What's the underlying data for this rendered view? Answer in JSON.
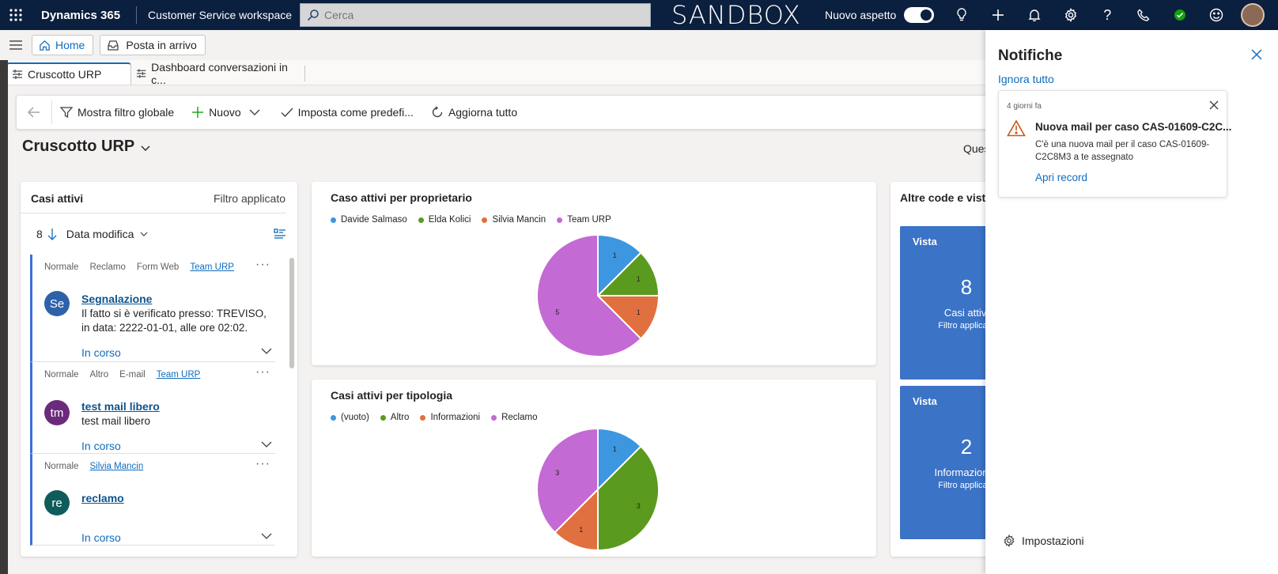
{
  "topbar": {
    "brand": "Dynamics 365",
    "app_name": "Customer Service workspace",
    "search_placeholder": "Cerca",
    "environment": "SANDBOX",
    "new_look_label": "Nuovo aspetto"
  },
  "navbar": {
    "home_label": "Home",
    "inbox_label": "Posta in arrivo"
  },
  "tabs": [
    {
      "label": "Cruscotto URP",
      "active": true
    },
    {
      "label": "Dashboard conversazioni in c...",
      "active": false
    }
  ],
  "commands": {
    "global_filter": "Mostra filtro globale",
    "new": "Nuovo",
    "set_default": "Imposta come predefi...",
    "refresh_all": "Aggiorna tutto"
  },
  "dashboard": {
    "title": "Cruscotto URP",
    "right_partial": "Ques"
  },
  "cases_panel": {
    "title": "Casi attivi",
    "filter": "Filtro applicato",
    "count": "8",
    "sort_field": "Data modifica",
    "items": [
      {
        "tags": [
          "Normale",
          "Reclamo",
          "Form Web"
        ],
        "owner": "Team URP",
        "initials": "Se",
        "avatar_color": "#2e62a8",
        "title": "Segnalazione",
        "description": "Il fatto si è verificato presso: TREVISO, in data: 2222-01-01, alle ore 02:02.",
        "status": "In corso"
      },
      {
        "tags": [
          "Normale",
          "Altro",
          "E-mail"
        ],
        "owner": "Team URP",
        "initials": "tm",
        "avatar_color": "#6b2a7c",
        "title": "test mail libero",
        "description": "test mail libero",
        "status": "In corso"
      },
      {
        "tags": [
          "Normale"
        ],
        "owner": "Silvia Mancin",
        "initials": "re",
        "avatar_color": "#0f5c5c",
        "title": "reclamo",
        "description": "",
        "status": "In corso"
      }
    ]
  },
  "chart_data": [
    {
      "type": "pie",
      "title": "Caso attivi per proprietario",
      "categories": [
        "Davide Salmaso",
        "Elda Kolici",
        "Silvia Mancin",
        "Team URP"
      ],
      "values": [
        1,
        1,
        1,
        5
      ],
      "colors": [
        "#3c97e0",
        "#5a9a1e",
        "#e07040",
        "#c46ad4"
      ],
      "legend": "top-left"
    },
    {
      "type": "pie",
      "title": "Casi attivi per tipologia",
      "categories": [
        "(vuoto)",
        "Altro",
        "Informazioni",
        "Reclamo"
      ],
      "values": [
        1,
        3,
        1,
        3
      ],
      "colors": [
        "#3c97e0",
        "#5a9a1e",
        "#e07040",
        "#c46ad4"
      ],
      "legend": "top-left"
    }
  ],
  "other_queues": {
    "title": "Altre code e viste",
    "tiles": [
      {
        "label": "Vista",
        "number": "8",
        "subtitle": "Casi attivi",
        "filter": "Filtro applicato"
      },
      {
        "label": "Vista",
        "number": "2",
        "subtitle": "Informazioni c",
        "filter": "Filtro applicato"
      }
    ]
  },
  "notifications": {
    "title": "Notifiche",
    "dismiss_all": "Ignora tutto",
    "card": {
      "time_ago": "4 giorni fa",
      "heading": "Nuova mail per caso CAS-01609-C2C...",
      "body": "C'è una nuova mail per il caso CAS-01609-C2C8M3 a te assegnato",
      "link": "Apri record"
    },
    "settings_label": "Impostazioni"
  }
}
